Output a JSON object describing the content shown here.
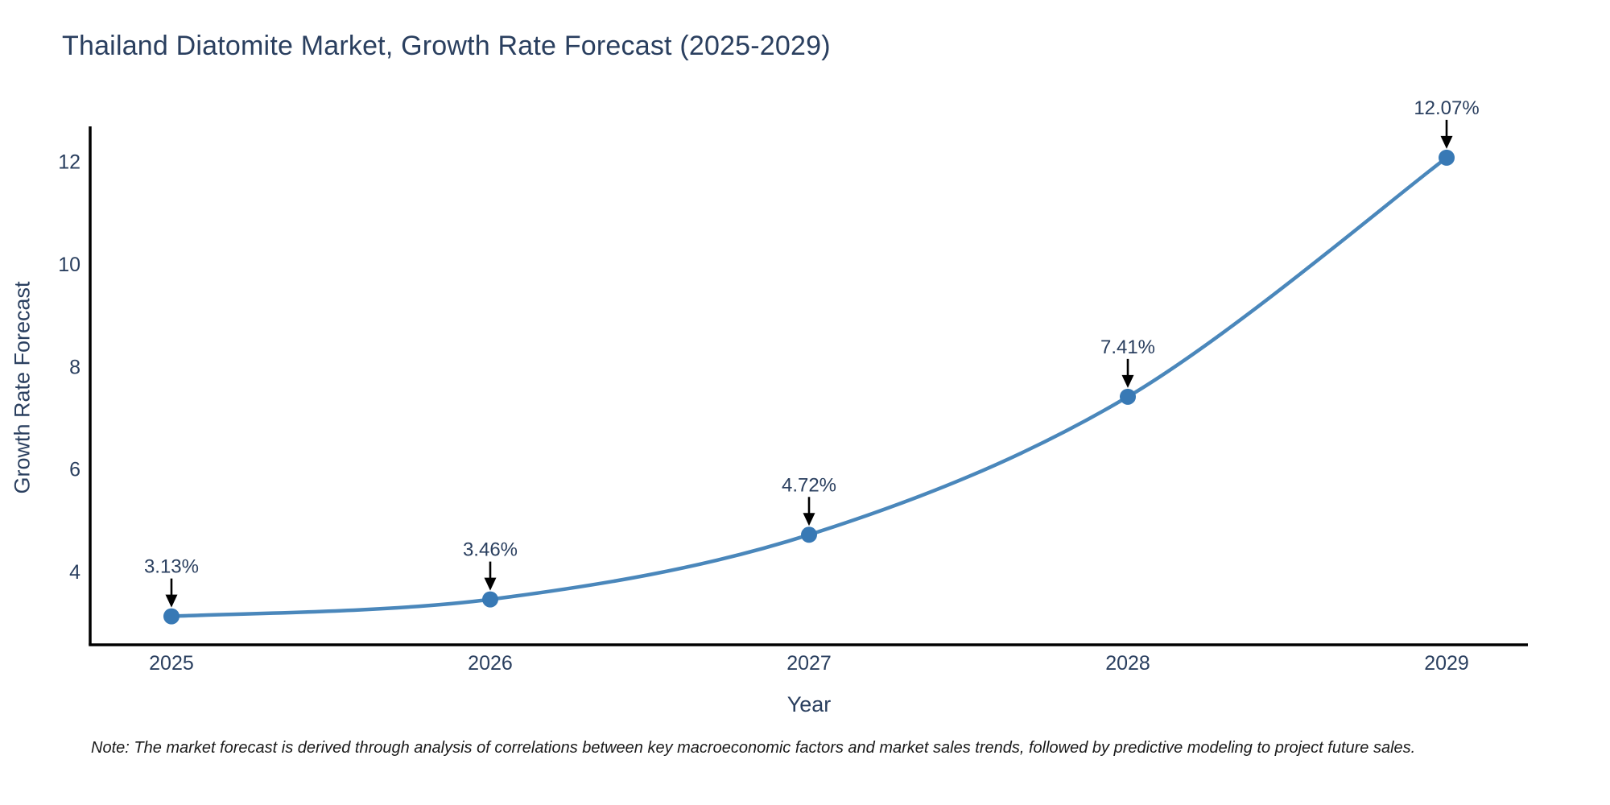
{
  "note": "Note: The market forecast is derived through analysis of correlations between key macroeconomic factors and market sales trends, followed by predictive modeling to project future sales.",
  "chart_data": {
    "type": "line",
    "title": "Thailand Diatomite Market, Growth Rate Forecast (2025-2029)",
    "xlabel": "Year",
    "ylabel": "Growth Rate Forecast",
    "x": [
      2025,
      2026,
      2027,
      2028,
      2029
    ],
    "values": [
      3.13,
      3.46,
      4.72,
      7.41,
      12.07
    ],
    "point_labels": [
      "3.13%",
      "3.46%",
      "4.72%",
      "7.41%",
      "12.07%"
    ],
    "xticks": [
      "2025",
      "2026",
      "2027",
      "2028",
      "2029"
    ],
    "yticks": [
      4,
      6,
      8,
      10,
      12
    ],
    "xlim": [
      2024.745,
      2029.255
    ],
    "ylim": [
      2.575,
      12.68
    ],
    "grid": false,
    "legend_position": "none",
    "smooth": true,
    "colors": {
      "line": "#4a87bb",
      "marker": "#3879b5",
      "axis": "#000000",
      "tick_text": "#2a3f5f",
      "annotation_text": "#2a3f5f",
      "annotation_arrow": "#000000"
    }
  }
}
